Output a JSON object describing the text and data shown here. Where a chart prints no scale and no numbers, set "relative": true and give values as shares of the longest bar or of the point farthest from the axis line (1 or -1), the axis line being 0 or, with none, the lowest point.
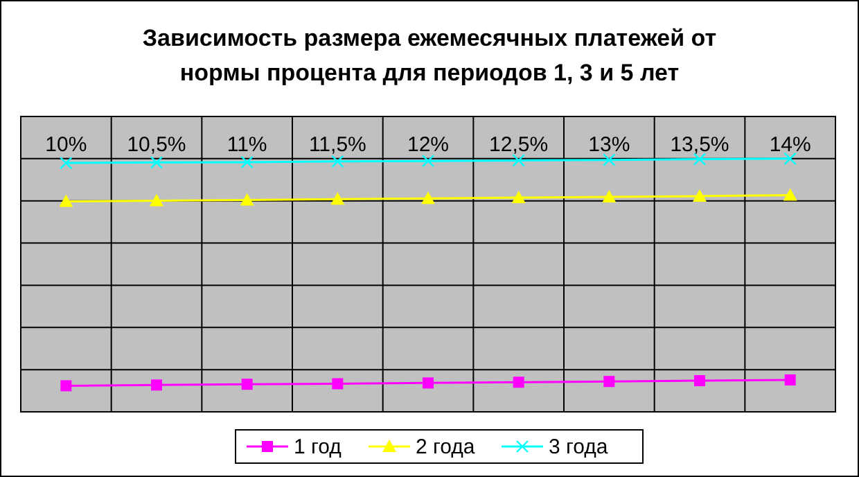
{
  "chart_data": {
    "type": "line",
    "title": "Зависимость размера ежемесячных платежей от\nнормы процента для периодов 1, 3 и 5 лет",
    "categories": [
      "10%",
      "10,5%",
      "11%",
      "11,5%",
      "12%",
      "12,5%",
      "13%",
      "13,5%",
      "14%"
    ],
    "relative": true,
    "grid": true,
    "legend": "bottom",
    "series": [
      {
        "name": "1 год",
        "color": "#ff00ff",
        "marker": "square",
        "values": [
          0.103,
          0.106,
          0.109,
          0.111,
          0.114,
          0.117,
          0.12,
          0.123,
          0.126
        ]
      },
      {
        "name": "2 года",
        "color": "#ffff00",
        "marker": "triangle",
        "values": [
          0.831,
          0.834,
          0.837,
          0.84,
          0.843,
          0.846,
          0.849,
          0.852,
          0.856
        ]
      },
      {
        "name": "3 года",
        "color": "#00ffff",
        "marker": "cross",
        "values": [
          0.983,
          0.985,
          0.986,
          0.989,
          0.991,
          0.993,
          0.995,
          0.998,
          1
        ]
      }
    ]
  }
}
